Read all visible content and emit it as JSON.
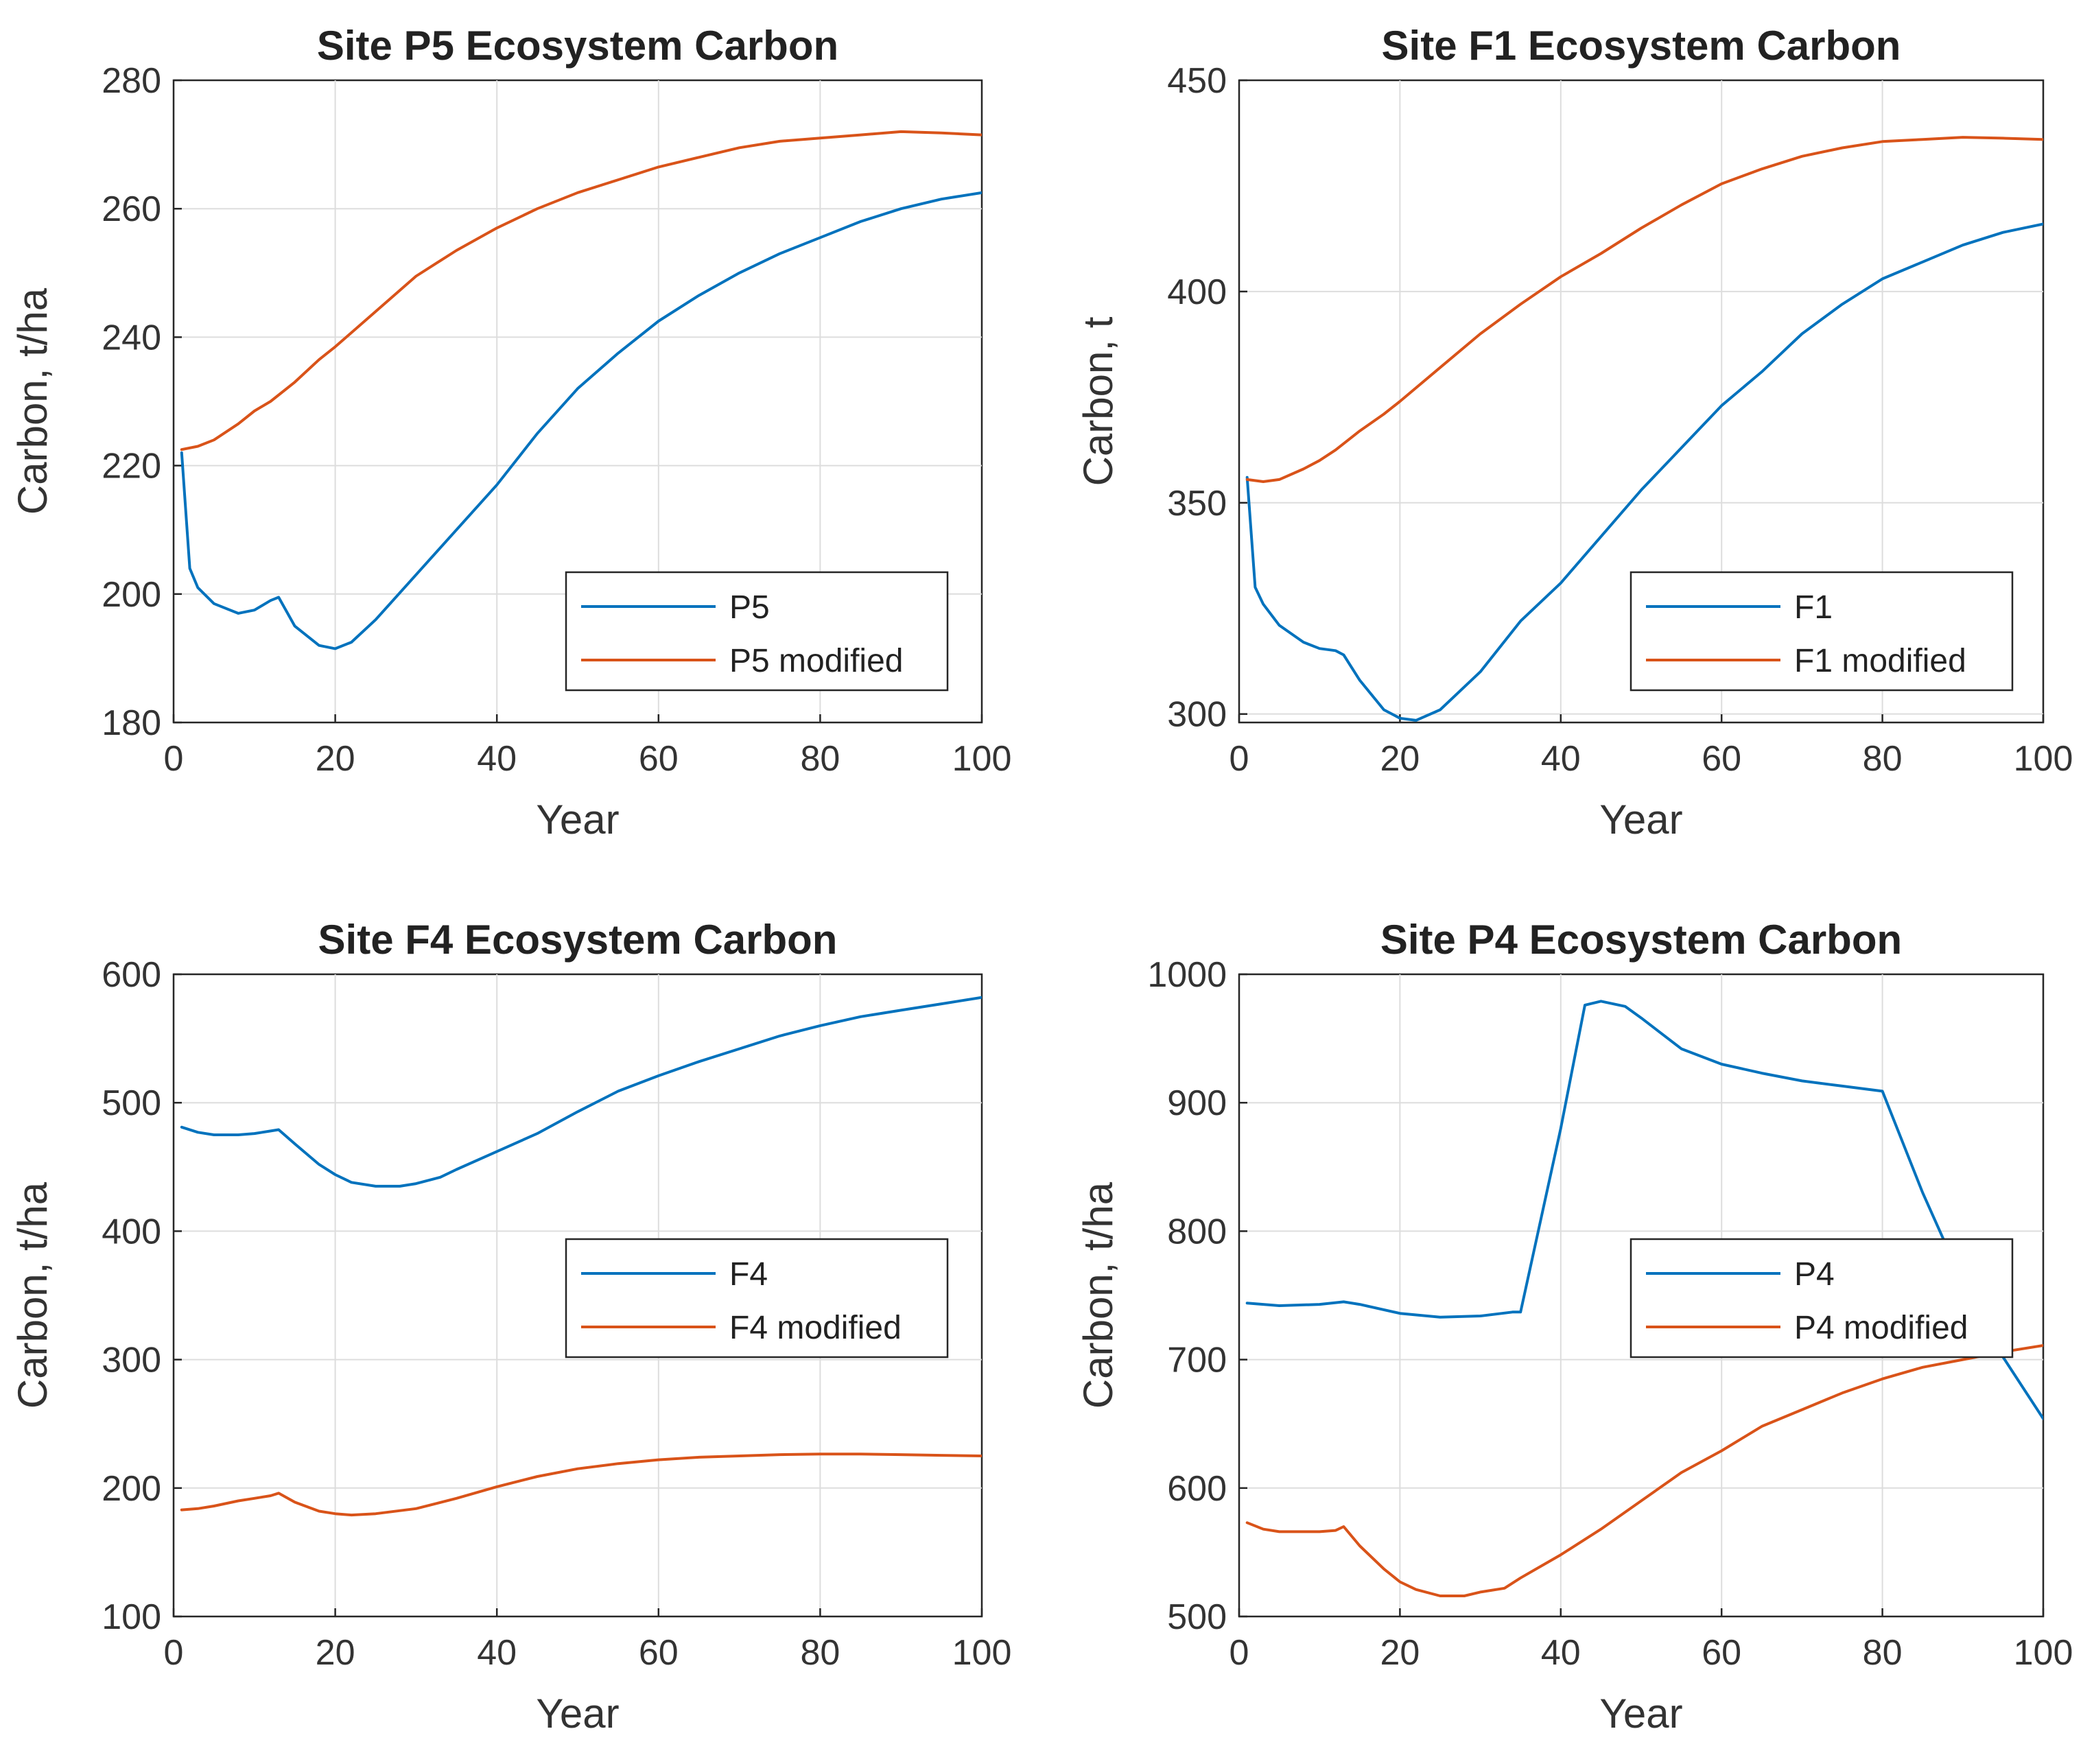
{
  "chart_data": [
    {
      "type": "line",
      "title": "Site P5 Ecosystem Carbon",
      "xlabel": "Year",
      "ylabel": "Carbon, t/ha",
      "xlim": [
        0,
        100
      ],
      "ylim": [
        180,
        280
      ],
      "xticks": [
        0,
        20,
        40,
        60,
        80,
        100
      ],
      "yticks": [
        180,
        200,
        220,
        240,
        260,
        280
      ],
      "grid": true,
      "legend_position": "bottom-right",
      "series": [
        {
          "name": "P5",
          "color": "#0072BD",
          "x": [
            1,
            2,
            3,
            5,
            8,
            10,
            12,
            13,
            15,
            18,
            20,
            22,
            25,
            30,
            35,
            40,
            45,
            50,
            55,
            60,
            65,
            70,
            75,
            80,
            85,
            90,
            95,
            100
          ],
          "y": [
            222,
            204,
            201,
            198.5,
            197,
            197.5,
            199,
            199.5,
            195,
            192,
            191.5,
            192.5,
            196,
            203,
            210,
            217,
            225,
            232,
            237.5,
            242.5,
            246.5,
            250,
            253,
            255.5,
            258,
            260,
            261.5,
            262.5
          ]
        },
        {
          "name": "P5 modified",
          "color": "#D95319",
          "x": [
            1,
            3,
            5,
            8,
            10,
            12,
            15,
            18,
            20,
            25,
            30,
            35,
            40,
            45,
            50,
            55,
            60,
            65,
            70,
            75,
            80,
            85,
            90,
            95,
            100
          ],
          "y": [
            222.5,
            223,
            224,
            226.5,
            228.5,
            230,
            233,
            236.5,
            238.5,
            244,
            249.5,
            253.5,
            257,
            260,
            262.5,
            264.5,
            266.5,
            268,
            269.5,
            270.5,
            271,
            271.5,
            272,
            271.8,
            271.5
          ]
        }
      ]
    },
    {
      "type": "line",
      "title": "Site F1 Ecosystem Carbon",
      "xlabel": "Year",
      "ylabel": "Carbon, t",
      "xlim": [
        0,
        100
      ],
      "ylim": [
        298,
        450
      ],
      "xticks": [
        0,
        20,
        40,
        60,
        80,
        100
      ],
      "yticks": [
        300,
        350,
        400,
        450
      ],
      "grid": true,
      "legend_position": "bottom-right",
      "series": [
        {
          "name": "F1",
          "color": "#0072BD",
          "x": [
            1,
            2,
            3,
            5,
            8,
            10,
            12,
            13,
            15,
            18,
            20,
            22,
            25,
            30,
            35,
            40,
            45,
            50,
            55,
            60,
            65,
            70,
            75,
            80,
            85,
            90,
            95,
            100
          ],
          "y": [
            356,
            330,
            326,
            321,
            317,
            315.5,
            315,
            314,
            308,
            301,
            299,
            298.5,
            301,
            310,
            322,
            331,
            342,
            353,
            363,
            373,
            381,
            390,
            397,
            403,
            407,
            411,
            414,
            416
          ]
        },
        {
          "name": "F1 modified",
          "color": "#D95319",
          "x": [
            1,
            3,
            5,
            8,
            10,
            12,
            15,
            18,
            20,
            25,
            30,
            35,
            40,
            45,
            50,
            55,
            60,
            65,
            70,
            75,
            80,
            85,
            90,
            95,
            100
          ],
          "y": [
            355.5,
            355,
            355.5,
            358,
            360,
            362.5,
            367,
            371,
            374,
            382,
            390,
            397,
            403.5,
            409,
            415,
            420.5,
            425.5,
            429,
            432,
            434,
            435.5,
            436,
            436.5,
            436.3,
            436
          ]
        }
      ]
    },
    {
      "type": "line",
      "title": "Site F4 Ecosystem Carbon",
      "xlabel": "Year",
      "ylabel": "Carbon, t/ha",
      "xlim": [
        0,
        100
      ],
      "ylim": [
        100,
        600
      ],
      "xticks": [
        0,
        20,
        40,
        60,
        80,
        100
      ],
      "yticks": [
        100,
        200,
        300,
        400,
        500,
        600
      ],
      "grid": true,
      "legend_position": "center-right",
      "series": [
        {
          "name": "F4",
          "color": "#0072BD",
          "x": [
            1,
            3,
            5,
            8,
            10,
            12,
            13,
            15,
            18,
            20,
            22,
            25,
            28,
            30,
            33,
            35,
            40,
            45,
            50,
            55,
            60,
            65,
            70,
            75,
            80,
            85,
            90,
            95,
            100
          ],
          "y": [
            481,
            477,
            475,
            475,
            476,
            478,
            479,
            468,
            452,
            444,
            438,
            435,
            435,
            437,
            442,
            448,
            462,
            476,
            493,
            509,
            521,
            532,
            542,
            552,
            560,
            567,
            572,
            577,
            582
          ]
        },
        {
          "name": "F4 modified",
          "color": "#D95319",
          "x": [
            1,
            3,
            5,
            8,
            10,
            12,
            13,
            15,
            18,
            20,
            22,
            25,
            30,
            35,
            40,
            45,
            50,
            55,
            60,
            65,
            70,
            75,
            80,
            85,
            90,
            95,
            100
          ],
          "y": [
            183,
            184,
            186,
            190,
            192,
            194,
            196,
            189,
            182,
            180,
            179,
            180,
            184,
            192,
            201,
            209,
            215,
            219,
            222,
            224,
            225,
            226,
            226.5,
            226.5,
            226,
            225.5,
            225
          ]
        }
      ]
    },
    {
      "type": "line",
      "title": "Site P4 Ecosystem Carbon",
      "xlabel": "Year",
      "ylabel": "Carbon, t/ha",
      "xlim": [
        0,
        100
      ],
      "ylim": [
        500,
        1000
      ],
      "xticks": [
        0,
        20,
        40,
        60,
        80,
        100
      ],
      "yticks": [
        500,
        600,
        700,
        800,
        900,
        1000
      ],
      "grid": true,
      "legend_position": "center-right",
      "series": [
        {
          "name": "P4",
          "color": "#0072BD",
          "x": [
            1,
            5,
            10,
            13,
            15,
            20,
            25,
            30,
            34,
            35,
            40,
            43,
            45,
            48,
            50,
            55,
            60,
            65,
            70,
            75,
            80,
            85,
            90,
            95,
            100
          ],
          "y": [
            744,
            742,
            743,
            745,
            743,
            736,
            733,
            734,
            737,
            737,
            880,
            976,
            979,
            975,
            966,
            942,
            930,
            923,
            917,
            913,
            909,
            830,
            760,
            702,
            654
          ]
        },
        {
          "name": "P4 modified",
          "color": "#D95319",
          "x": [
            1,
            3,
            5,
            8,
            10,
            12,
            13,
            15,
            18,
            20,
            22,
            25,
            28,
            30,
            33,
            35,
            40,
            45,
            50,
            55,
            60,
            65,
            70,
            75,
            80,
            85,
            90,
            95,
            100
          ],
          "y": [
            573,
            568,
            566,
            566,
            566,
            567,
            570,
            555,
            537,
            527,
            521,
            516,
            516,
            519,
            522,
            530,
            548,
            568,
            590,
            612,
            629,
            648,
            661,
            674,
            685,
            694,
            700,
            706,
            711
          ]
        }
      ]
    }
  ]
}
